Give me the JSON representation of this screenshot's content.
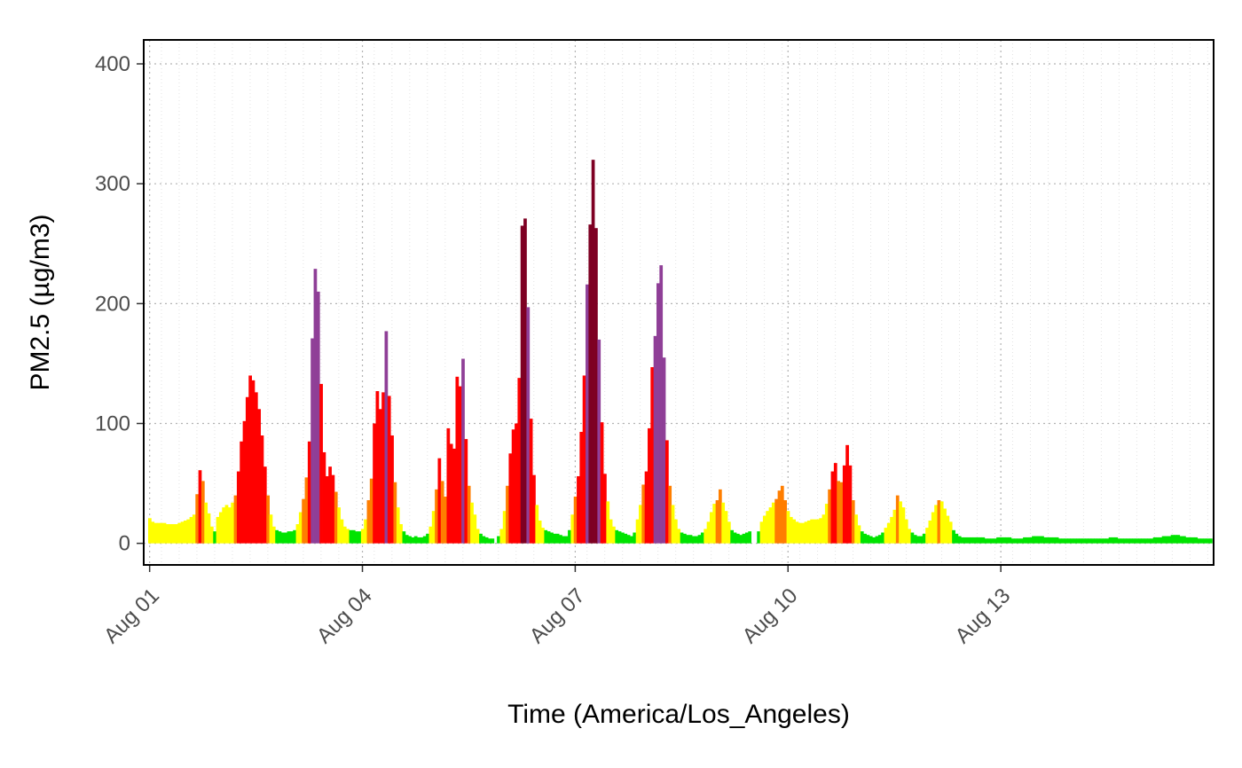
{
  "chart_data": {
    "type": "bar",
    "title": "",
    "xlabel": "Time (America/Los_Angeles)",
    "ylabel": "PM2.5 (µg/m3)",
    "x_unit": "hourly",
    "x_start": "2020-08-01T00:00",
    "x_end": "2020-08-15T23:00",
    "xlim": [
      "2020-07-31T22:00",
      "2020-08-16T00:00"
    ],
    "ylim": [
      -18,
      420
    ],
    "y_ticks": [
      0,
      100,
      200,
      300,
      400
    ],
    "x_ticks": [
      {
        "date": "2020-08-01T00:00",
        "label": "Aug 01"
      },
      {
        "date": "2020-08-04T00:00",
        "label": "Aug 04"
      },
      {
        "date": "2020-08-07T00:00",
        "label": "Aug 07"
      },
      {
        "date": "2020-08-10T00:00",
        "label": "Aug 10"
      },
      {
        "date": "2020-08-13T00:00",
        "label": "Aug 13"
      }
    ],
    "grid": true,
    "legend": "none",
    "aqi_colors": [
      {
        "max": 12,
        "color": "#00e400"
      },
      {
        "max": 35.5,
        "color": "#ffff00"
      },
      {
        "max": 55.5,
        "color": "#ff7e00"
      },
      {
        "max": 150.5,
        "color": "#ff0000"
      },
      {
        "max": 250.5,
        "color": "#8f3f97"
      },
      {
        "max": 10000,
        "color": "#7e0023"
      }
    ],
    "series": [
      {
        "values": [
          21,
          18,
          17,
          17,
          17,
          17,
          16,
          16,
          16,
          16,
          17,
          18,
          19,
          20,
          22,
          24,
          41,
          61,
          52,
          34,
          25,
          14,
          10,
          22,
          26,
          30,
          32,
          30,
          34,
          40,
          60,
          85,
          102,
          122,
          140,
          136,
          126,
          112,
          90,
          64,
          40,
          24,
          14,
          11,
          10,
          9,
          9,
          10,
          10,
          11,
          16,
          26,
          37,
          55,
          85,
          171,
          229,
          210,
          133,
          76,
          56,
          64,
          57,
          43,
          30,
          20,
          14,
          12,
          11,
          11,
          10,
          10,
          12,
          20,
          36,
          54,
          100,
          127,
          112,
          126,
          177,
          123,
          90,
          51,
          30,
          16,
          10,
          7,
          6,
          5,
          6,
          5,
          5,
          6,
          8,
          14,
          27,
          45,
          71,
          52,
          39,
          96,
          83,
          79,
          139,
          131,
          154,
          87,
          48,
          34,
          24,
          12,
          8,
          6,
          5,
          4,
          4,
          null,
          6,
          12,
          27,
          48,
          75,
          95,
          100,
          138,
          265,
          271,
          197,
          104,
          57,
          32,
          19,
          13,
          11,
          10,
          9,
          8,
          8,
          7,
          6,
          6,
          11,
          24,
          39,
          56,
          93,
          140,
          216,
          266,
          320,
          263,
          170,
          101,
          58,
          35,
          20,
          14,
          11,
          10,
          9,
          8,
          7,
          6,
          9,
          20,
          32,
          49,
          60,
          96,
          147,
          173,
          217,
          232,
          155,
          86,
          48,
          32,
          20,
          12,
          9,
          8,
          7,
          7,
          6,
          6,
          7,
          9,
          12,
          18,
          26,
          33,
          36,
          45,
          34,
          27,
          18,
          11,
          9,
          8,
          7,
          8,
          9,
          10,
          null,
          null,
          10,
          18,
          23,
          27,
          30,
          34,
          37,
          44,
          48,
          36,
          27,
          22,
          20,
          18,
          17,
          17,
          18,
          19,
          20,
          20,
          20,
          21,
          24,
          33,
          45,
          60,
          67,
          52,
          51,
          65,
          82,
          65,
          36,
          24,
          15,
          10,
          8,
          7,
          6,
          5,
          6,
          7,
          9,
          13,
          17,
          22,
          28,
          40,
          35,
          30,
          20,
          12,
          9,
          7,
          6,
          6,
          8,
          13,
          19,
          26,
          32,
          36,
          35,
          29,
          23,
          18,
          11,
          8,
          6,
          5,
          5,
          5,
          5,
          5,
          5,
          5,
          5,
          4,
          4,
          4,
          4,
          5,
          5,
          5,
          5,
          5,
          4,
          4,
          4,
          4,
          5,
          5,
          5,
          6,
          6,
          6,
          6,
          5,
          5,
          5,
          5,
          5,
          4,
          4,
          4,
          4,
          4,
          4,
          4,
          4,
          4,
          4,
          4,
          4,
          4,
          4,
          4,
          4,
          4,
          5,
          5,
          5,
          4,
          4,
          4,
          4,
          4,
          4,
          4,
          4,
          4,
          4,
          4,
          4,
          5,
          5,
          5,
          6,
          6,
          6,
          7,
          7,
          7,
          6,
          6,
          5,
          5,
          5,
          5,
          4,
          4,
          4,
          4,
          4
        ]
      }
    ]
  }
}
